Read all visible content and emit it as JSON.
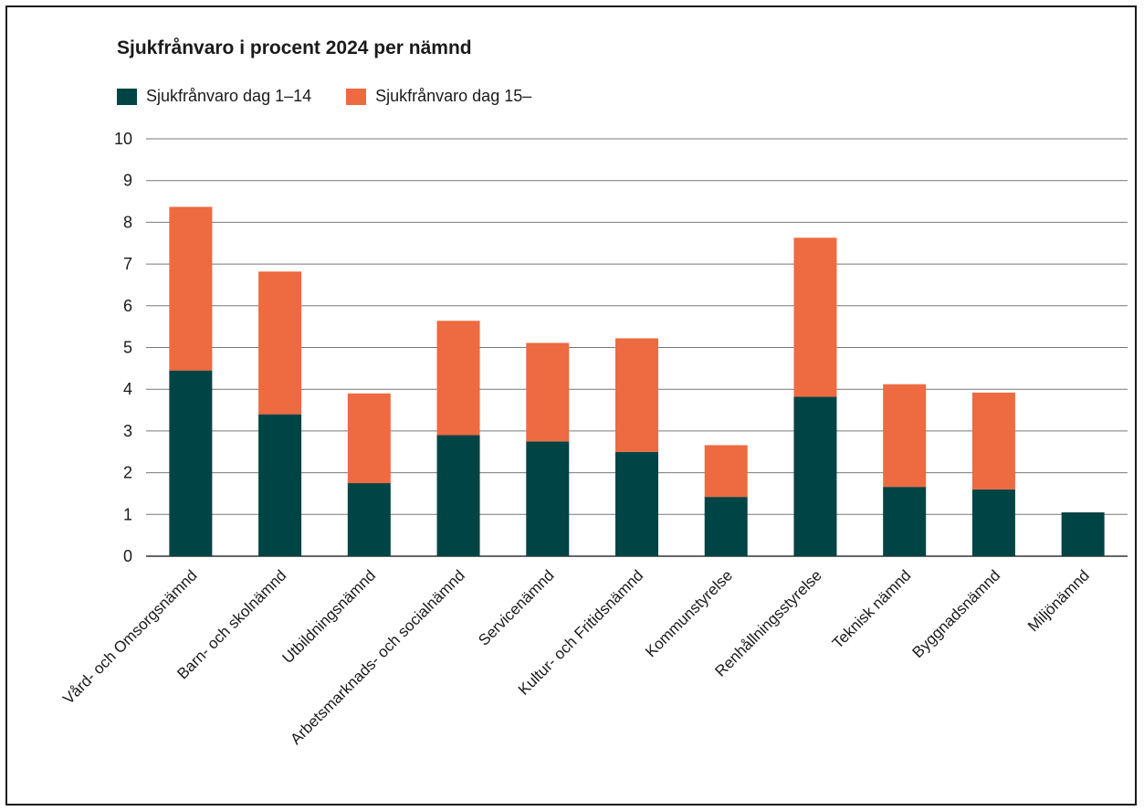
{
  "chart_data": {
    "type": "bar",
    "stacked": true,
    "title": "Sjukfrånvaro i procent 2024 per nämnd",
    "xlabel": "",
    "ylabel": "",
    "ylim": [
      0,
      10
    ],
    "yticks": [
      "0",
      "1",
      "2",
      "3",
      "4",
      "5",
      "6",
      "7",
      "8",
      "9",
      "10"
    ],
    "grid": true,
    "legend_position": "top-left",
    "categories": [
      "Vård- och Omsorgsnämnd",
      "Barn- och skolnämnd",
      "Utbildningsnämnd",
      "Arbetsmarknads- och socialnämnd",
      "Servicenämnd",
      "Kultur- och Fritidsnämnd",
      "Kommunstyrelse",
      "Renhållningsstyrelse",
      "Teknisk nämnd",
      "Byggnadsnämnd",
      "Miljönämnd"
    ],
    "series": [
      {
        "name": "Sjukfrånvaro dag 1–14",
        "color": "#004445",
        "values": [
          4.45,
          3.4,
          1.75,
          2.9,
          2.75,
          2.5,
          1.42,
          3.82,
          1.66,
          1.6,
          1.05
        ]
      },
      {
        "name": "Sjukfrånvaro dag 15–",
        "color": "#EE6A40",
        "values": [
          3.92,
          3.42,
          2.15,
          2.74,
          2.36,
          2.72,
          1.24,
          3.81,
          2.46,
          2.32,
          0
        ]
      }
    ]
  }
}
